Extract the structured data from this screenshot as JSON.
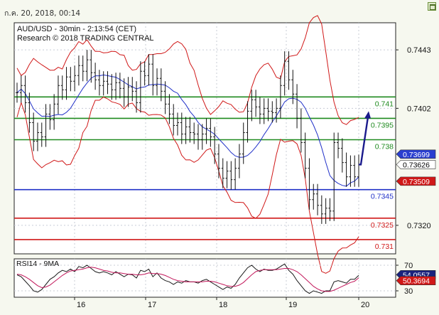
{
  "header": {
    "timestamp": "ก.ค. 20, 2018, 00:14"
  },
  "chart_data": [
    {
      "type": "line",
      "title": "AUD/USD - 30min - 2:13:54 (CET)",
      "subtitle": "Research © 2018 TRADING CENTRAL",
      "ylim": [
        0.73,
        0.7462
      ],
      "y_ticks": [
        "0.7443",
        "0.7402",
        "0.7320"
      ],
      "x_ticks": [
        "16",
        "17",
        "18",
        "19",
        "20"
      ],
      "grid": true,
      "levels": [
        {
          "label": "0.741",
          "value": 0.741,
          "color": "#1f8a1f"
        },
        {
          "label": "0.7395",
          "value": 0.7395,
          "color": "#1f8a1f"
        },
        {
          "label": "0.738",
          "value": 0.738,
          "color": "#1f8a1f"
        },
        {
          "label": "0.7345",
          "value": 0.7345,
          "color": "#2030c8"
        },
        {
          "label": "0.7325",
          "value": 0.7325,
          "color": "#d01818"
        },
        {
          "label": "0.731",
          "value": 0.731,
          "color": "#d01818"
        }
      ],
      "price_tags": [
        {
          "label": "0.73699",
          "value": 0.73699,
          "bg": "#2a3fd0",
          "fg": "#ffffff"
        },
        {
          "label": "0.73626",
          "value": 0.73626,
          "bg": "#ffffff",
          "fg": "#000000"
        },
        {
          "label": "0.73509",
          "value": 0.73509,
          "bg": "#d01818",
          "fg": "#ffffff"
        }
      ],
      "price_series": [
        0.7413,
        0.7418,
        0.7406,
        0.7392,
        0.7379,
        0.7385,
        0.7382,
        0.7398,
        0.7394,
        0.7405,
        0.7418,
        0.7415,
        0.7424,
        0.7421,
        0.7425,
        0.7432,
        0.7428,
        0.7436,
        0.7427,
        0.7422,
        0.7418,
        0.7421,
        0.7419,
        0.7415,
        0.742,
        0.7416,
        0.741,
        0.7417,
        0.7414,
        0.7406,
        0.7428,
        0.7425,
        0.7433,
        0.7418,
        0.7423,
        0.7414,
        0.7405,
        0.7398,
        0.739,
        0.7392,
        0.7384,
        0.7389,
        0.7385,
        0.7384,
        0.738,
        0.7384,
        0.7388,
        0.7382,
        0.737,
        0.736,
        0.7353,
        0.7358,
        0.7352,
        0.736,
        0.737,
        0.7385,
        0.74,
        0.7408,
        0.7403,
        0.7398,
        0.7402,
        0.74,
        0.7399,
        0.7402,
        0.7418,
        0.7435,
        0.7422,
        0.7412,
        0.7395,
        0.7378,
        0.736,
        0.7338,
        0.7342,
        0.7334,
        0.7328,
        0.7332,
        0.733,
        0.7378,
        0.7374,
        0.7364,
        0.7354,
        0.7362,
        0.7354,
        0.73626
      ],
      "forecast_arrow": {
        "from": 0.73626,
        "to": 0.7398,
        "color": "#1a1a8c"
      },
      "indicators": {
        "bollinger_color": "#d01818",
        "moving_average_color": "#2030c8"
      }
    },
    {
      "type": "line",
      "title": "RSI14 - 9MA",
      "ylim": [
        20,
        80
      ],
      "y_ticks": [
        "70",
        "30"
      ],
      "price_tags": [
        {
          "label": "54.0557",
          "value": 54.0557,
          "bg": "#1a237e",
          "fg": "#ffffff"
        },
        {
          "label": "50.3694",
          "value": 50.3694,
          "bg": "#d01818",
          "fg": "#ffffff"
        }
      ],
      "series": [
        {
          "color": "#1a1a1a",
          "values": [
            55,
            52,
            45,
            38,
            30,
            28,
            32,
            40,
            48,
            52,
            58,
            62,
            60,
            64,
            60,
            68,
            66,
            70,
            65,
            60,
            58,
            60,
            58,
            55,
            60,
            56,
            52,
            56,
            55,
            50,
            62,
            60,
            64,
            52,
            58,
            50,
            46,
            44,
            40,
            44,
            42,
            46,
            44,
            44,
            42,
            46,
            48,
            44,
            40,
            36,
            32,
            36,
            34,
            40,
            50,
            58,
            66,
            70,
            64,
            60,
            64,
            62,
            62,
            64,
            68,
            72,
            62,
            56,
            46,
            38,
            30,
            26,
            30,
            28,
            26,
            30,
            30,
            44,
            46,
            44,
            42,
            48,
            48,
            54.06
          ]
        },
        {
          "color": "#c2185b",
          "values": [
            56,
            55,
            52,
            48,
            43,
            38,
            35,
            36,
            39,
            44,
            49,
            54,
            58,
            61,
            62,
            63,
            64,
            66,
            67,
            66,
            64,
            62,
            61,
            59,
            58,
            58,
            57,
            56,
            56,
            55,
            55,
            56,
            58,
            57,
            57,
            56,
            54,
            51,
            48,
            46,
            45,
            44,
            44,
            44,
            44,
            44,
            45,
            45,
            44,
            42,
            40,
            38,
            37,
            37,
            39,
            43,
            49,
            55,
            60,
            62,
            63,
            63,
            63,
            63,
            64,
            65,
            65,
            63,
            60,
            55,
            49,
            43,
            37,
            33,
            30,
            29,
            29,
            31,
            34,
            37,
            40,
            43,
            45,
            50.37
          ]
        }
      ]
    }
  ]
}
